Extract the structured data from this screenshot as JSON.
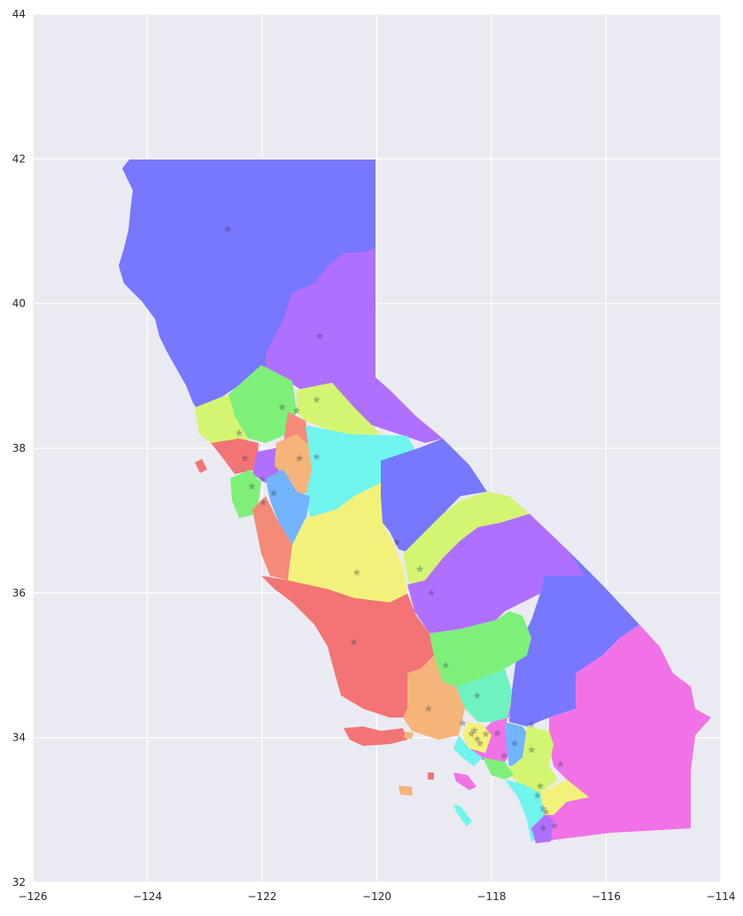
{
  "map": {
    "background_color": "#eaeaf2",
    "grid_color": "#ffffff",
    "xlim": [
      -126,
      -114
    ],
    "ylim": [
      32,
      44
    ],
    "x_ticks": [
      "−126",
      "−124",
      "−122",
      "−120",
      "−118",
      "−116",
      "−114"
    ],
    "y_ticks": [
      "32",
      "34",
      "36",
      "38",
      "40",
      "42",
      "44"
    ],
    "region_colors": {
      "blue": "#7777ff",
      "purple": "#b070ff",
      "green": "#7ef07a",
      "lime": "#d4f572",
      "red": "#f27474",
      "salmon": "#f48a78",
      "orange": "#f5b47a",
      "cyan": "#6ff5ee",
      "yellow": "#f2f27a",
      "sky": "#72b4ff",
      "magenta": "#f172e6",
      "teal": "#6ef2c0"
    },
    "district_center_marker": "star-icon"
  }
}
